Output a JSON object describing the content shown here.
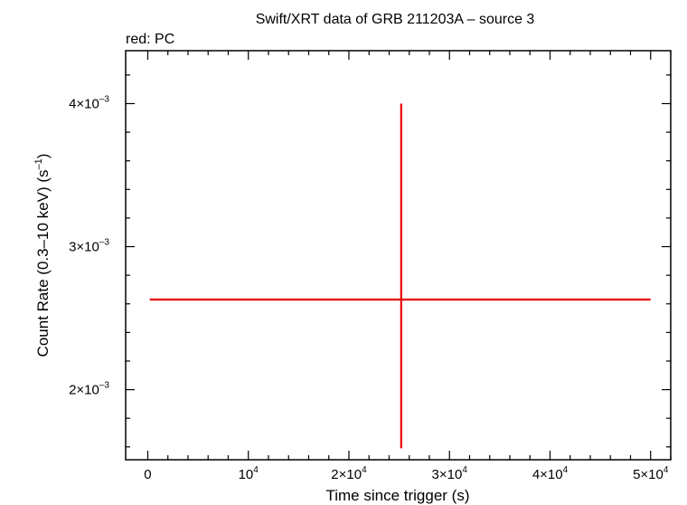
{
  "chart_data": {
    "type": "scatter",
    "title": "Swift/XRT data of GRB 211203A – source 3",
    "subtitle": "red: PC",
    "xlabel": "Time since trigger (s)",
    "ylabel_parts": [
      "Count Rate (0.3–10 keV) (s",
      "–1",
      ")"
    ],
    "xlim": [
      -2200,
      52000
    ],
    "ylim": [
      0.00151,
      0.00437
    ],
    "x_ticks": [
      {
        "value": 0,
        "label": "0",
        "exp": ""
      },
      {
        "value": 10000,
        "label": "10",
        "exp": "4"
      },
      {
        "value": 20000,
        "label": "2×10",
        "exp": "4"
      },
      {
        "value": 30000,
        "label": "3×10",
        "exp": "4"
      },
      {
        "value": 40000,
        "label": "4×10",
        "exp": "4"
      },
      {
        "value": 50000,
        "label": "5×10",
        "exp": "4"
      }
    ],
    "y_ticks": [
      {
        "value": 0.002,
        "label": "2×10",
        "exp": "–3"
      },
      {
        "value": 0.003,
        "label": "3×10",
        "exp": "–3"
      },
      {
        "value": 0.004,
        "label": "4×10",
        "exp": "–3"
      }
    ],
    "series": [
      {
        "color": "#e60000",
        "points": [
          {
            "x": 25200,
            "xerr_low": 25000,
            "xerr_high": 24800,
            "y": 0.00263,
            "yerr_low": 0.00104,
            "yerr_high": 0.00137
          }
        ]
      }
    ]
  }
}
